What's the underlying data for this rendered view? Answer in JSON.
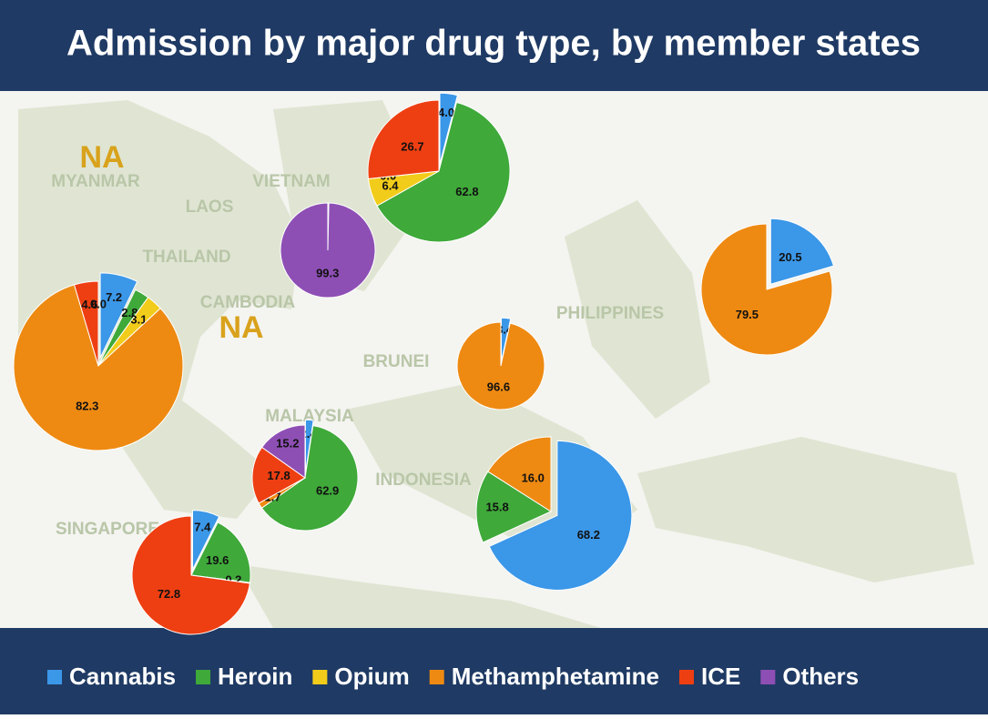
{
  "title": "Admission by major drug type, by member states",
  "legend": {
    "categories": [
      "Cannabis",
      "Heroin",
      "Opium",
      "Methamphetamine",
      "ICE",
      "Others"
    ],
    "colors": [
      "#3b97e8",
      "#3fa93a",
      "#f2cc1a",
      "#ee8a12",
      "#ee3f12",
      "#8e4fb5"
    ]
  },
  "map_labels": [
    "MYANMAR",
    "VIETNAM",
    "LAOS",
    "THAILAND",
    "CAMBODIA",
    "PHILIPPINES",
    "BRUNEI",
    "MALAYSIA",
    "INDONESIA",
    "SINGAPORE"
  ],
  "na_labels": [
    "NA",
    "NA"
  ],
  "chart_data": [
    {
      "type": "pie",
      "values": [
        4,
        62.8,
        6.4,
        0,
        26.7,
        null
      ],
      "value_labels": [
        "4.0",
        "62.8",
        "6.4",
        "0.0",
        "26.7",
        null
      ]
    },
    {
      "type": "pie",
      "values": [
        null,
        null,
        null,
        0.04,
        0.3,
        99.3
      ],
      "value_labels": [
        null,
        null,
        null,
        "0.04",
        "0.3",
        "99.3"
      ]
    },
    {
      "type": "pie",
      "values": [
        7.2,
        2.8,
        3.1,
        82.3,
        4.6,
        0
      ],
      "value_labels": [
        "7.2",
        "2.8",
        "3.1",
        "82.3",
        "4.6",
        "0.0"
      ]
    },
    {
      "type": "pie",
      "values": [
        20.5,
        null,
        null,
        79.5,
        null,
        null
      ],
      "value_labels": [
        "20.5",
        null,
        null,
        "79.5",
        null,
        null
      ]
    },
    {
      "type": "pie",
      "values": [
        3.4,
        null,
        null,
        96.6,
        null,
        null
      ],
      "value_labels": [
        "3.4",
        null,
        null,
        "96.6",
        null,
        null
      ]
    },
    {
      "type": "pie",
      "values": [
        2.4,
        62.9,
        null,
        1.7,
        17.8,
        15.2
      ],
      "value_labels": [
        "2.4",
        "62.9",
        null,
        "1.7",
        "17.8",
        "15.2"
      ]
    },
    {
      "type": "pie",
      "values": [
        68.2,
        15.8,
        null,
        16,
        null,
        null
      ],
      "value_labels": [
        "68.2",
        "15.8",
        null,
        "16.0",
        null,
        null
      ]
    },
    {
      "type": "pie",
      "values": [
        7.4,
        19.6,
        null,
        0.2,
        72.8,
        null
      ],
      "value_labels": [
        "7.4",
        "19.6",
        null,
        "0.2",
        "72.8",
        null
      ]
    }
  ]
}
